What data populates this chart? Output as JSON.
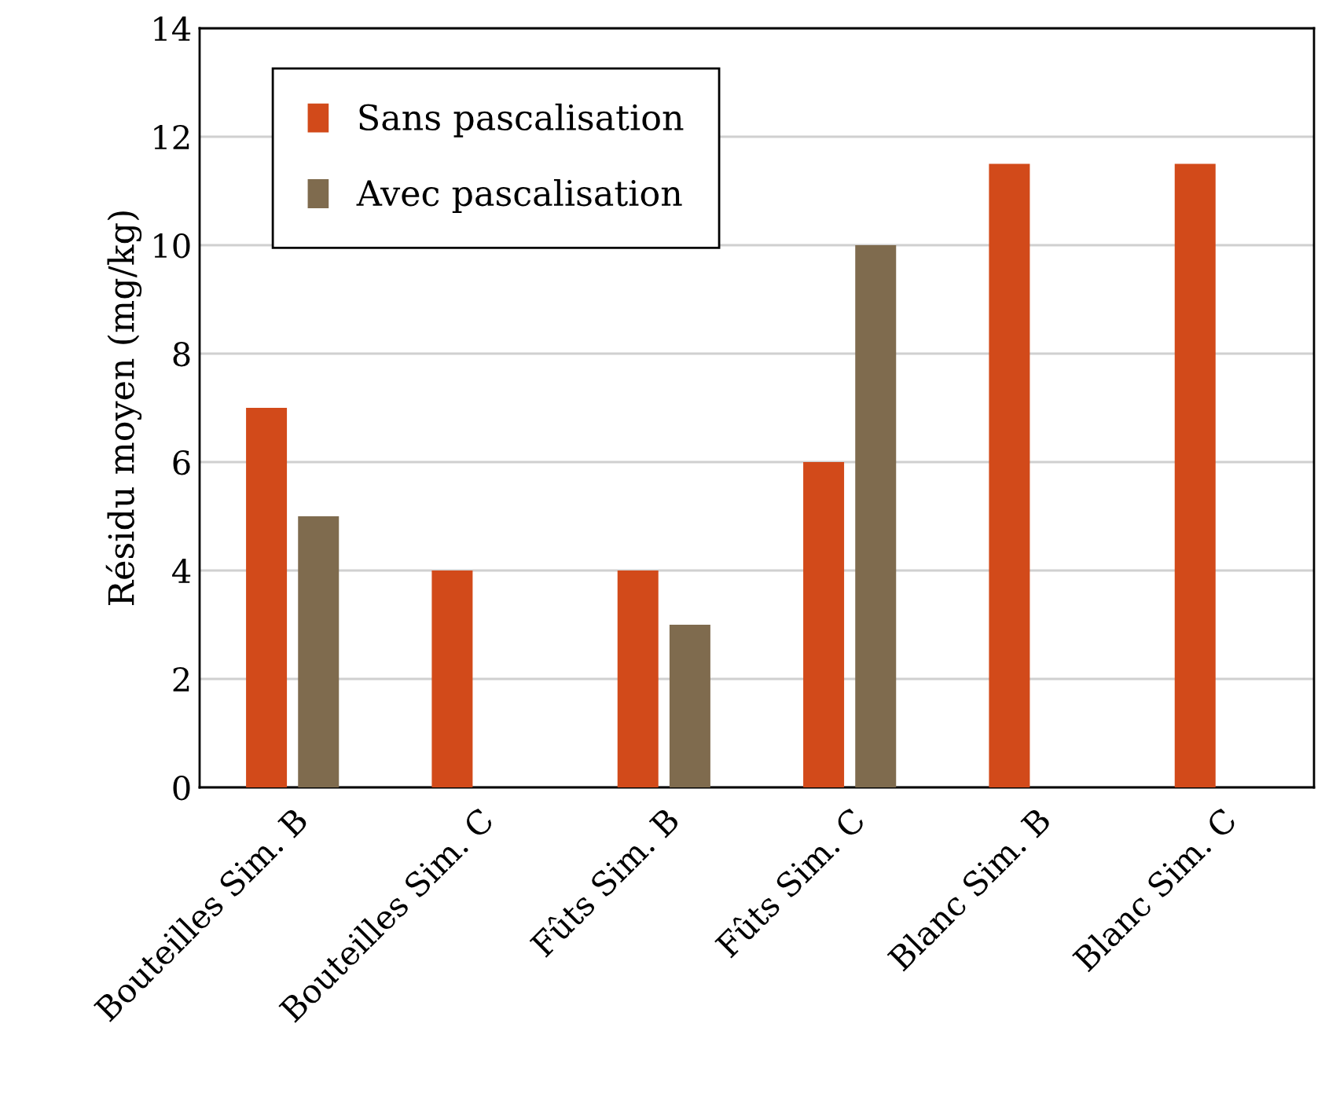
{
  "chart_data": {
    "type": "bar",
    "ylabel": "Résidu moyen (mg/kg)",
    "categories": [
      "Bouteilles Sim. B",
      "Bouteilles Sim. C",
      "Fûts Sim. B",
      "Fûts Sim. C",
      "Blanc Sim. B",
      "Blanc Sim. C"
    ],
    "series": [
      {
        "name": "Sans pascalisation",
        "color": "#d24a1a",
        "values": [
          7,
          4,
          4,
          6,
          11.5,
          11.5
        ]
      },
      {
        "name": "Avec pascalisation",
        "color": "#7f6b4e",
        "values": [
          5,
          null,
          3,
          10,
          null,
          null
        ]
      }
    ],
    "ylim": [
      0,
      14
    ],
    "yticks": [
      0,
      2,
      4,
      6,
      8,
      10,
      12,
      14
    ],
    "grid": "y",
    "legend": "top left"
  }
}
